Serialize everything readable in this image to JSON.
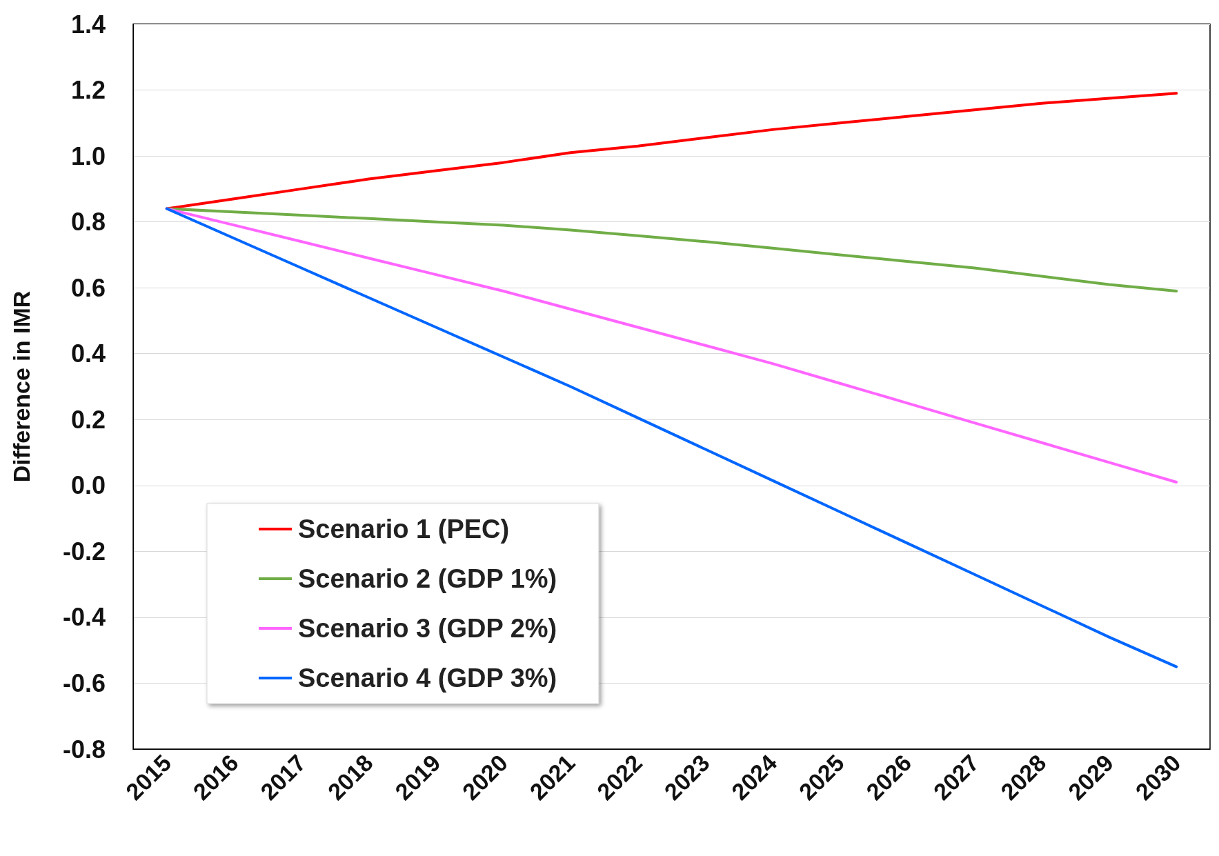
{
  "chart_data": {
    "type": "line",
    "ylabel": "Difference in IMR",
    "categories": [
      "2015",
      "2016",
      "2017",
      "2018",
      "2019",
      "2020",
      "2021",
      "2022",
      "2023",
      "2024",
      "2025",
      "2026",
      "2027",
      "2028",
      "2029",
      "2030"
    ],
    "series": [
      {
        "name": "Scenario 1 (PEC)",
        "color": "#ff0000",
        "values": [
          0.84,
          0.87,
          0.9,
          0.93,
          0.955,
          0.98,
          1.01,
          1.03,
          1.055,
          1.08,
          1.1,
          1.12,
          1.14,
          1.16,
          1.175,
          1.19
        ]
      },
      {
        "name": "Scenario 2 (GDP 1%)",
        "color": "#70ad47",
        "values": [
          0.84,
          0.83,
          0.82,
          0.81,
          0.8,
          0.79,
          0.775,
          0.758,
          0.74,
          0.72,
          0.7,
          0.68,
          0.66,
          0.635,
          0.61,
          0.59
        ]
      },
      {
        "name": "Scenario 3 (GDP 2%)",
        "color": "#ff66ff",
        "values": [
          0.84,
          0.79,
          0.74,
          0.69,
          0.64,
          0.59,
          0.535,
          0.48,
          0.425,
          0.37,
          0.31,
          0.25,
          0.19,
          0.13,
          0.07,
          0.01
        ]
      },
      {
        "name": "Scenario 4 (GDP 3%)",
        "color": "#0066ff",
        "values": [
          0.84,
          0.75,
          0.66,
          0.57,
          0.48,
          0.39,
          0.3,
          0.205,
          0.11,
          0.015,
          -0.08,
          -0.175,
          -0.27,
          -0.365,
          -0.46,
          -0.55
        ]
      }
    ],
    "ylim": [
      -0.8,
      1.4
    ],
    "yticks": [
      {
        "value": -0.8,
        "label": "-0.8"
      },
      {
        "value": -0.6,
        "label": "-0.6"
      },
      {
        "value": -0.4,
        "label": "-0.4"
      },
      {
        "value": -0.2,
        "label": "-0.2"
      },
      {
        "value": 0,
        "label": "0.0"
      },
      {
        "value": 0.2,
        "label": "0.2"
      },
      {
        "value": 0.4,
        "label": "0.4"
      },
      {
        "value": 0.6,
        "label": "0.6"
      },
      {
        "value": 0.8,
        "label": "0.8"
      },
      {
        "value": 1.0,
        "label": "1.0"
      },
      {
        "value": 1.2,
        "label": "1.2"
      },
      {
        "value": 1.4,
        "label": "1.4"
      }
    ],
    "grid": "y",
    "legend": "bottom left",
    "marker": "none",
    "line_style": "solid"
  }
}
